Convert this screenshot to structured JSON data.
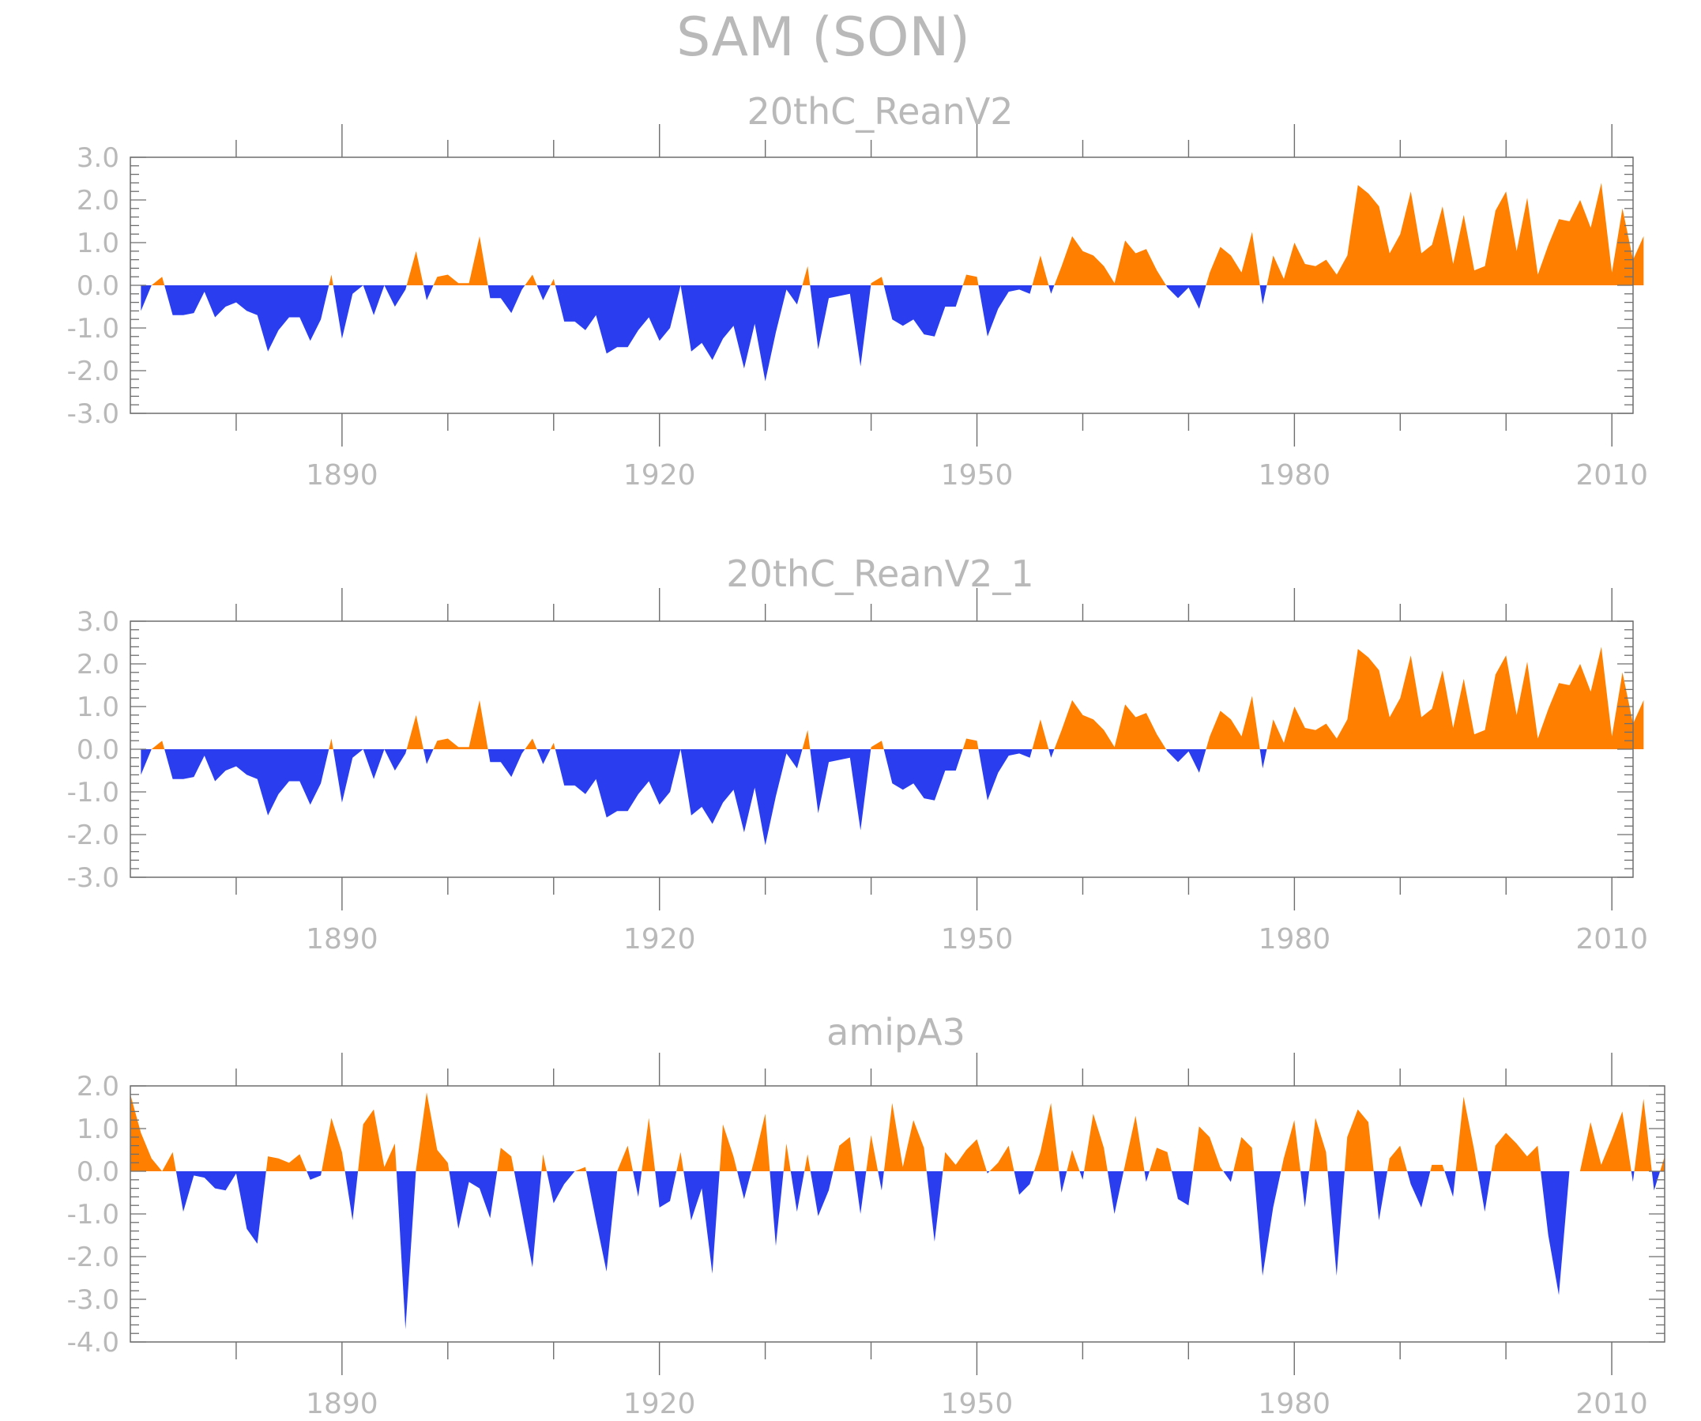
{
  "title": "SAM (SON)",
  "colors": {
    "positive": "#ff8000",
    "negative": "#2a3ef0",
    "axis": "#6e6e6e",
    "text": "#b9b9b9"
  },
  "chart_data": [
    {
      "type": "area",
      "title": "20thC_ReanV2",
      "ylim": [
        -3,
        3
      ],
      "xlim": [
        1870,
        2012
      ],
      "yticks": [
        -3,
        -2,
        -1,
        0,
        1,
        2,
        3
      ],
      "ytick_labels": [
        "-3.0",
        "-2.0",
        "-1.0",
        "0.0",
        "1.0",
        "2.0",
        "3.0"
      ],
      "xticks": [
        1890,
        1920,
        1950,
        1980,
        2010
      ],
      "xtick_labels": [
        "1890",
        "1920",
        "1950",
        "1980",
        "2010"
      ],
      "start_year": 1871,
      "values": [
        -0.6,
        0.0,
        0.2,
        -0.7,
        -0.7,
        -0.65,
        -0.15,
        -0.75,
        -0.5,
        -0.4,
        -0.6,
        -0.7,
        -1.55,
        -1.05,
        -0.75,
        -0.75,
        -1.3,
        -0.8,
        0.25,
        -1.25,
        -0.2,
        0.0,
        -0.7,
        0.0,
        -0.5,
        -0.1,
        0.8,
        -0.35,
        0.2,
        0.25,
        0.05,
        0.05,
        1.15,
        -0.3,
        -0.3,
        -0.65,
        -0.1,
        0.25,
        -0.35,
        0.15,
        -0.85,
        -0.85,
        -1.05,
        -0.7,
        -1.6,
        -1.45,
        -1.45,
        -1.05,
        -0.75,
        -1.3,
        -1.0,
        0.0,
        -1.55,
        -1.35,
        -1.75,
        -1.25,
        -0.95,
        -1.95,
        -0.9,
        -2.25,
        -1.1,
        -0.1,
        -0.45,
        0.45,
        -1.5,
        -0.3,
        -0.25,
        -0.2,
        -1.9,
        0.05,
        0.2,
        -0.8,
        -0.95,
        -0.8,
        -1.15,
        -1.2,
        -0.5,
        -0.5,
        0.25,
        0.2,
        -1.2,
        -0.55,
        -0.15,
        -0.1,
        -0.2,
        0.7,
        -0.2,
        0.45,
        1.15,
        0.8,
        0.7,
        0.45,
        0.05,
        1.05,
        0.75,
        0.85,
        0.35,
        -0.05,
        -0.3,
        -0.05,
        -0.55,
        0.3,
        0.9,
        0.7,
        0.3,
        1.25,
        -0.45,
        0.7,
        0.15,
        1.0,
        0.5,
        0.45,
        0.6,
        0.25,
        0.7,
        2.35,
        2.15,
        1.85,
        0.75,
        1.2,
        2.2,
        0.75,
        0.95,
        1.85,
        0.5,
        1.65,
        0.35,
        0.45,
        1.75,
        2.2,
        0.8,
        2.05,
        0.25,
        0.95,
        1.55,
        1.5,
        2.0,
        1.35,
        2.4,
        0.3,
        1.8,
        0.6,
        1.15
      ]
    },
    {
      "type": "area",
      "title": "20thC_ReanV2_1",
      "ylim": [
        -3,
        3
      ],
      "xlim": [
        1870,
        2012
      ],
      "yticks": [
        -3,
        -2,
        -1,
        0,
        1,
        2,
        3
      ],
      "ytick_labels": [
        "-3.0",
        "-2.0",
        "-1.0",
        "0.0",
        "1.0",
        "2.0",
        "3.0"
      ],
      "xticks": [
        1890,
        1920,
        1950,
        1980,
        2010
      ],
      "xtick_labels": [
        "1890",
        "1920",
        "1950",
        "1980",
        "2010"
      ],
      "start_year": 1871,
      "values": [
        -0.6,
        0.0,
        0.2,
        -0.7,
        -0.7,
        -0.65,
        -0.15,
        -0.75,
        -0.5,
        -0.4,
        -0.6,
        -0.7,
        -1.55,
        -1.05,
        -0.75,
        -0.75,
        -1.3,
        -0.8,
        0.25,
        -1.25,
        -0.2,
        0.0,
        -0.7,
        0.0,
        -0.5,
        -0.1,
        0.8,
        -0.35,
        0.2,
        0.25,
        0.05,
        0.05,
        1.15,
        -0.3,
        -0.3,
        -0.65,
        -0.1,
        0.25,
        -0.35,
        0.15,
        -0.85,
        -0.85,
        -1.05,
        -0.7,
        -1.6,
        -1.45,
        -1.45,
        -1.05,
        -0.75,
        -1.3,
        -1.0,
        0.0,
        -1.55,
        -1.35,
        -1.75,
        -1.25,
        -0.95,
        -1.95,
        -0.9,
        -2.25,
        -1.1,
        -0.1,
        -0.45,
        0.45,
        -1.5,
        -0.3,
        -0.25,
        -0.2,
        -1.9,
        0.05,
        0.2,
        -0.8,
        -0.95,
        -0.8,
        -1.15,
        -1.2,
        -0.5,
        -0.5,
        0.25,
        0.2,
        -1.2,
        -0.55,
        -0.15,
        -0.1,
        -0.2,
        0.7,
        -0.2,
        0.45,
        1.15,
        0.8,
        0.7,
        0.45,
        0.05,
        1.05,
        0.75,
        0.85,
        0.35,
        -0.05,
        -0.3,
        -0.05,
        -0.55,
        0.3,
        0.9,
        0.7,
        0.3,
        1.25,
        -0.45,
        0.7,
        0.15,
        1.0,
        0.5,
        0.45,
        0.6,
        0.25,
        0.7,
        2.35,
        2.15,
        1.85,
        0.75,
        1.2,
        2.2,
        0.75,
        0.95,
        1.85,
        0.5,
        1.65,
        0.35,
        0.45,
        1.75,
        2.2,
        0.8,
        2.05,
        0.25,
        0.95,
        1.55,
        1.5,
        2.0,
        1.35,
        2.4,
        0.3,
        1.8,
        0.6,
        1.15
      ]
    },
    {
      "type": "area",
      "title": "amipA3",
      "ylim": [
        -4,
        2
      ],
      "xlim": [
        1870,
        2015
      ],
      "yticks": [
        -4,
        -3,
        -2,
        -1,
        0,
        1,
        2
      ],
      "ytick_labels": [
        "-4.0",
        "-3.0",
        "-2.0",
        "-1.0",
        "0.0",
        "1.0",
        "2.0"
      ],
      "xticks": [
        1890,
        1920,
        1950,
        1980,
        2010
      ],
      "xtick_labels": [
        "1890",
        "1920",
        "1950",
        "1980",
        "2010"
      ],
      "start_year": 1870,
      "values": [
        1.8,
        0.9,
        0.3,
        0.0,
        0.45,
        -0.95,
        -0.1,
        -0.15,
        -0.4,
        -0.45,
        -0.05,
        -1.35,
        -1.7,
        0.35,
        0.3,
        0.2,
        0.4,
        -0.2,
        -0.1,
        1.25,
        0.45,
        -1.15,
        1.1,
        1.45,
        0.1,
        0.65,
        -3.7,
        0.05,
        1.85,
        0.5,
        0.2,
        -1.35,
        -0.25,
        -0.4,
        -1.1,
        0.55,
        0.35,
        -0.95,
        -2.25,
        0.4,
        -0.75,
        -0.3,
        0.0,
        0.1,
        -1.15,
        -2.35,
        0.0,
        0.6,
        -0.6,
        1.25,
        -0.85,
        -0.7,
        0.45,
        -1.15,
        -0.4,
        -2.4,
        1.1,
        0.35,
        -0.65,
        0.3,
        1.35,
        -1.75,
        0.65,
        -0.95,
        0.4,
        -1.05,
        -0.45,
        0.6,
        0.8,
        -1.0,
        0.85,
        -0.45,
        1.6,
        0.1,
        1.2,
        0.55,
        -1.65,
        0.45,
        0.15,
        0.5,
        0.75,
        -0.05,
        0.2,
        0.6,
        -0.55,
        -0.3,
        0.45,
        1.6,
        -0.5,
        0.5,
        -0.2,
        1.35,
        0.55,
        -1.0,
        0.15,
        1.3,
        -0.25,
        0.55,
        0.45,
        -0.65,
        -0.8,
        1.05,
        0.8,
        0.1,
        -0.25,
        0.8,
        0.55,
        -2.45,
        -0.85,
        0.3,
        1.2,
        -0.85,
        1.25,
        0.45,
        -2.45,
        0.8,
        1.45,
        1.15,
        -1.15,
        0.3,
        0.6,
        -0.3,
        -0.85,
        0.15,
        0.15,
        -0.6,
        1.75,
        0.5,
        -0.95,
        0.6,
        0.9,
        0.65,
        0.35,
        0.6,
        -1.5,
        -2.9,
        0.0,
        0.0,
        1.15,
        0.15,
        0.75,
        1.4,
        -0.25,
        1.7,
        -0.45,
        0.35
      ]
    }
  ]
}
